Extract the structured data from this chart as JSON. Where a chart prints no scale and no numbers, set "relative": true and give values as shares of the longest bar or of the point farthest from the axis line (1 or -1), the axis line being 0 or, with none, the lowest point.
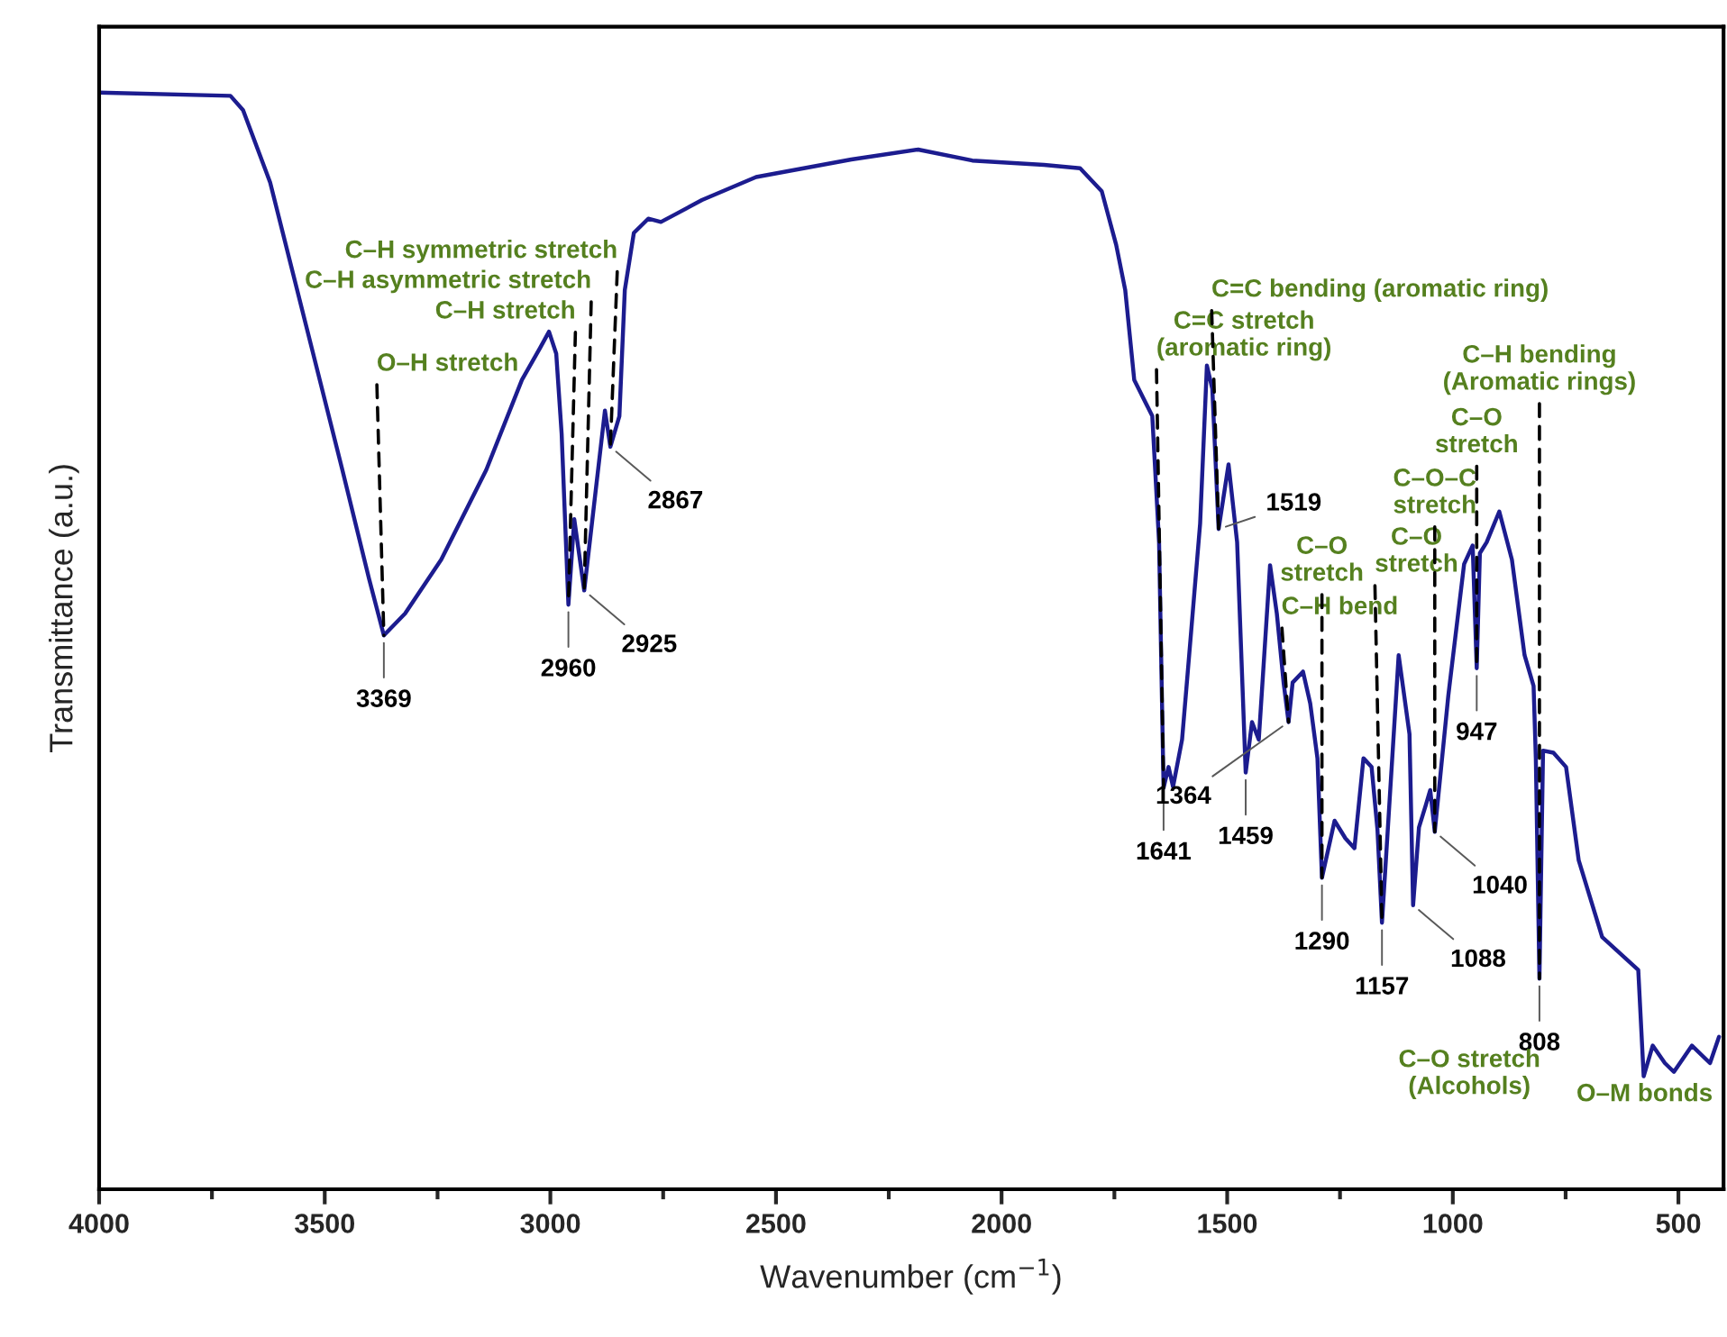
{
  "chart_data": {
    "type": "line",
    "relative": true,
    "xlabel": "Wavenumber (cm$^{−1}$)",
    "ylabel": "Transmittance (a.u.)",
    "xlim": [
      4000,
      400
    ],
    "xticks": [
      4000,
      {
        "value": 3750,
        "label": null
      },
      3500,
      {
        "value": 3250,
        "label": null
      },
      3000,
      {
        "value": 2750,
        "label": null
      },
      2500,
      {
        "value": 2250,
        "label": null
      },
      2000,
      {
        "value": 1750,
        "label": null
      },
      1500,
      {
        "value": 1250,
        "label": null
      },
      1000,
      {
        "value": 750,
        "label": null
      },
      500
    ],
    "x": [
      4000,
      3709,
      3681,
      3621,
      3541,
      3461,
      3402,
      3369,
      3322,
      3242,
      3142,
      3063,
      3023,
      3003,
      2987,
      2975,
      2960,
      2947,
      2925,
      2899,
      2879,
      2867,
      2847,
      2835,
      2815,
      2783,
      2755,
      2723,
      2664,
      2544,
      2333,
      2185,
      2065,
      1906,
      1826,
      1778,
      1746,
      1726,
      1706,
      1666,
      1651,
      1641,
      1630,
      1620,
      1600,
      1580,
      1560,
      1545,
      1533,
      1519,
      1497,
      1478,
      1459,
      1445,
      1430,
      1405,
      1390,
      1375,
      1364,
      1355,
      1332,
      1316,
      1300,
      1290,
      1262,
      1238,
      1218,
      1198,
      1180,
      1167,
      1157,
      1120,
      1096,
      1088,
      1075,
      1060,
      1050,
      1040,
      1010,
      975,
      956,
      947,
      940,
      925,
      897,
      869,
      841,
      821,
      816,
      808,
      800,
      777,
      749,
      721,
      669,
      589,
      577,
      557,
      530,
      510,
      470,
      430,
      410
    ],
    "series": [
      {
        "color": "#1c1c8f",
        "values": [
          1.0,
          0.997,
          0.984,
          0.918,
          0.787,
          0.656,
          0.557,
          0.505,
          0.525,
          0.574,
          0.656,
          0.738,
          0.767,
          0.782,
          0.762,
          0.689,
          0.533,
          0.611,
          0.546,
          0.639,
          0.71,
          0.677,
          0.705,
          0.82,
          0.872,
          0.885,
          0.882,
          0.889,
          0.902,
          0.923,
          0.939,
          0.948,
          0.938,
          0.934,
          0.931,
          0.91,
          0.861,
          0.82,
          0.738,
          0.705,
          0.59,
          0.366,
          0.385,
          0.367,
          0.41,
          0.508,
          0.607,
          0.751,
          0.73,
          0.602,
          0.661,
          0.59,
          0.38,
          0.426,
          0.41,
          0.569,
          0.525,
          0.462,
          0.426,
          0.462,
          0.472,
          0.443,
          0.393,
          0.284,
          0.336,
          0.32,
          0.311,
          0.393,
          0.385,
          0.328,
          0.243,
          0.487,
          0.415,
          0.259,
          0.33,
          0.35,
          0.364,
          0.326,
          0.45,
          0.57,
          0.587,
          0.475,
          0.58,
          0.59,
          0.618,
          0.574,
          0.487,
          0.459,
          0.393,
          0.192,
          0.4,
          0.398,
          0.385,
          0.3,
          0.23,
          0.2,
          0.103,
          0.131,
          0.115,
          0.107,
          0.131,
          0.115,
          0.139
        ]
      }
    ],
    "annotations": [
      {
        "text": "O–H stretch",
        "x": 3369,
        "y": 0.505
      },
      {
        "text": "C–H stretch",
        "x": 2960,
        "y": 0.533
      },
      {
        "text": "C–H asymmetric stretch",
        "x": 2925,
        "y": 0.546
      },
      {
        "text": "C–H symmetric stretch",
        "x": 2867,
        "y": 0.677
      },
      {
        "text": "C=C stretch\n(aromatic ring)",
        "x": 1641,
        "y": 0.366
      },
      {
        "text": "C=C bending (aromatic ring)",
        "x": 1519,
        "y": 0.602
      },
      {
        "text": "C–H bend",
        "x": 1364,
        "y": 0.426
      },
      {
        "text": "C–O\nstretch",
        "x": 1290,
        "y": 0.284
      },
      {
        "text": "C–O\nstretch",
        "x": 1157,
        "y": 0.243
      },
      {
        "text": "C–O–C\nstretch",
        "x": 1040,
        "y": 0.326
      },
      {
        "text": "C–O\nstretch",
        "x": 947,
        "y": 0.475
      },
      {
        "text": "C–H bending\n(Aromatic rings)",
        "x": 808,
        "y": 0.192
      },
      "O–M bonds",
      "C–O stretch\n(Alcohols)",
      {
        "text": "3369",
        "x": 3369,
        "y": 0.505
      },
      {
        "text": "2960",
        "x": 2960,
        "y": 0.533
      },
      {
        "text": "2925",
        "x": 2925,
        "y": 0.546
      },
      {
        "text": "2867",
        "x": 2867,
        "y": 0.677
      },
      {
        "text": "1641",
        "x": 1641,
        "y": 0.366
      },
      {
        "text": "1519",
        "x": 1519,
        "y": 0.602
      },
      {
        "text": "1459",
        "x": 1459,
        "y": 0.38
      },
      {
        "text": "1364",
        "x": 1364,
        "y": 0.426
      },
      {
        "text": "1290",
        "x": 1290,
        "y": 0.284
      },
      {
        "text": "1157",
        "x": 1157,
        "y": 0.243
      },
      {
        "text": "1088",
        "x": 1088,
        "y": 0.259
      },
      {
        "text": "1040",
        "x": 1040,
        "y": 0.326
      },
      {
        "text": "947",
        "x": 947,
        "y": 0.475
      },
      {
        "text": "808",
        "x": 808,
        "y": 0.192
      }
    ]
  }
}
